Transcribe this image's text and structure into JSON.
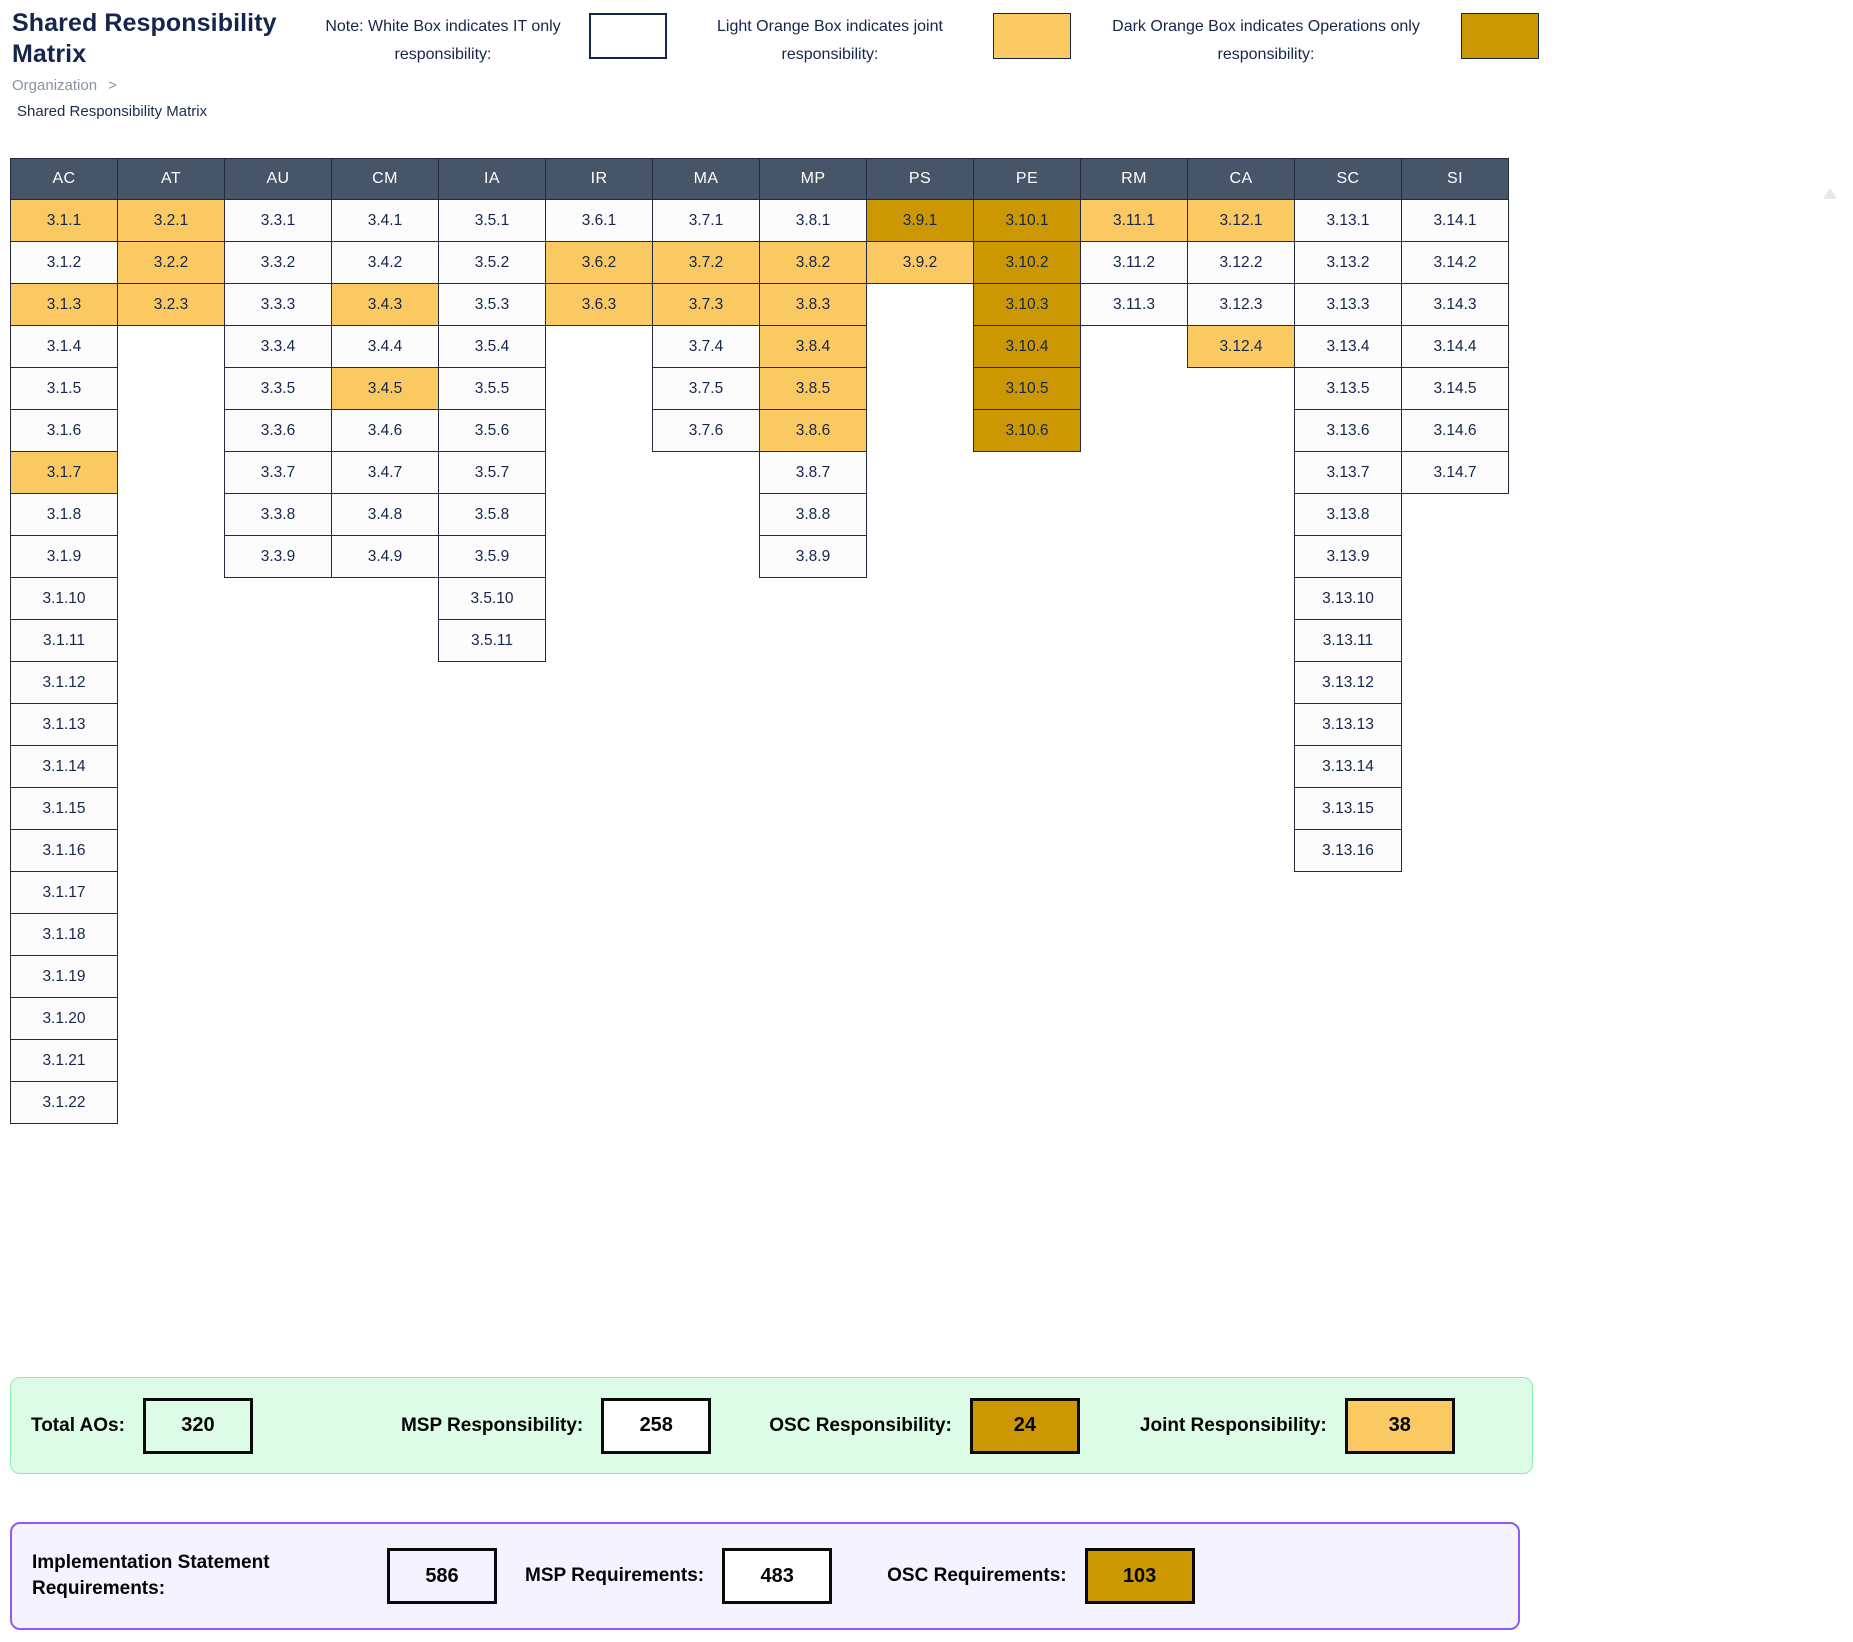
{
  "header": {
    "title": "Shared Responsibility Matrix",
    "breadcrumb": {
      "parent": "Organization",
      "separator": ">",
      "current": "Shared Responsibility Matrix"
    },
    "legend": [
      {
        "line1": "Note: White Box indicates IT only",
        "line2": "responsibility:",
        "box": "white"
      },
      {
        "line1": "Light Orange Box indicates joint",
        "line2": "responsibility:",
        "box": "light-orange"
      },
      {
        "line1": "Dark Orange Box indicates Operations only",
        "line2": "responsibility:",
        "box": "dark-orange"
      }
    ]
  },
  "colors": {
    "joint_light_orange": "#FBC962",
    "osc_dark_orange": "#CB9803",
    "msp_white": "#FFFFFF",
    "header_slate": "#475569",
    "cell_border": "#212B3B",
    "text_navy": "#15254C",
    "green_panel_bg": "#DCFCE7",
    "green_panel_border": "#86EFAC",
    "purple_panel_bg": "#F5F3FF",
    "purple_panel_border": "#8B5CF6"
  },
  "matrix": {
    "families": [
      {
        "label": "AC",
        "cells": [
          {
            "id": "3.1.1",
            "status": "joint"
          },
          {
            "id": "3.1.2",
            "status": "msp"
          },
          {
            "id": "3.1.3",
            "status": "joint"
          },
          {
            "id": "3.1.4",
            "status": "msp"
          },
          {
            "id": "3.1.5",
            "status": "msp"
          },
          {
            "id": "3.1.6",
            "status": "msp"
          },
          {
            "id": "3.1.7",
            "status": "joint"
          },
          {
            "id": "3.1.8",
            "status": "msp"
          },
          {
            "id": "3.1.9",
            "status": "msp"
          },
          {
            "id": "3.1.10",
            "status": "msp"
          },
          {
            "id": "3.1.11",
            "status": "msp"
          },
          {
            "id": "3.1.12",
            "status": "msp"
          },
          {
            "id": "3.1.13",
            "status": "msp"
          },
          {
            "id": "3.1.14",
            "status": "msp"
          },
          {
            "id": "3.1.15",
            "status": "msp"
          },
          {
            "id": "3.1.16",
            "status": "msp"
          },
          {
            "id": "3.1.17",
            "status": "msp"
          },
          {
            "id": "3.1.18",
            "status": "msp"
          },
          {
            "id": "3.1.19",
            "status": "msp"
          },
          {
            "id": "3.1.20",
            "status": "msp"
          },
          {
            "id": "3.1.21",
            "status": "msp"
          },
          {
            "id": "3.1.22",
            "status": "msp"
          }
        ]
      },
      {
        "label": "AT",
        "cells": [
          {
            "id": "3.2.1",
            "status": "joint"
          },
          {
            "id": "3.2.2",
            "status": "joint"
          },
          {
            "id": "3.2.3",
            "status": "joint"
          }
        ]
      },
      {
        "label": "AU",
        "cells": [
          {
            "id": "3.3.1",
            "status": "msp"
          },
          {
            "id": "3.3.2",
            "status": "msp"
          },
          {
            "id": "3.3.3",
            "status": "msp"
          },
          {
            "id": "3.3.4",
            "status": "msp"
          },
          {
            "id": "3.3.5",
            "status": "msp"
          },
          {
            "id": "3.3.6",
            "status": "msp"
          },
          {
            "id": "3.3.7",
            "status": "msp"
          },
          {
            "id": "3.3.8",
            "status": "msp"
          },
          {
            "id": "3.3.9",
            "status": "msp"
          }
        ]
      },
      {
        "label": "CM",
        "cells": [
          {
            "id": "3.4.1",
            "status": "msp"
          },
          {
            "id": "3.4.2",
            "status": "msp"
          },
          {
            "id": "3.4.3",
            "status": "joint"
          },
          {
            "id": "3.4.4",
            "status": "msp"
          },
          {
            "id": "3.4.5",
            "status": "joint"
          },
          {
            "id": "3.4.6",
            "status": "msp"
          },
          {
            "id": "3.4.7",
            "status": "msp"
          },
          {
            "id": "3.4.8",
            "status": "msp"
          },
          {
            "id": "3.4.9",
            "status": "msp"
          }
        ]
      },
      {
        "label": "IA",
        "cells": [
          {
            "id": "3.5.1",
            "status": "msp"
          },
          {
            "id": "3.5.2",
            "status": "msp"
          },
          {
            "id": "3.5.3",
            "status": "msp"
          },
          {
            "id": "3.5.4",
            "status": "msp"
          },
          {
            "id": "3.5.5",
            "status": "msp"
          },
          {
            "id": "3.5.6",
            "status": "msp"
          },
          {
            "id": "3.5.7",
            "status": "msp"
          },
          {
            "id": "3.5.8",
            "status": "msp"
          },
          {
            "id": "3.5.9",
            "status": "msp"
          },
          {
            "id": "3.5.10",
            "status": "msp"
          },
          {
            "id": "3.5.11",
            "status": "msp"
          }
        ]
      },
      {
        "label": "IR",
        "cells": [
          {
            "id": "3.6.1",
            "status": "msp"
          },
          {
            "id": "3.6.2",
            "status": "joint"
          },
          {
            "id": "3.6.3",
            "status": "joint"
          }
        ]
      },
      {
        "label": "MA",
        "cells": [
          {
            "id": "3.7.1",
            "status": "msp"
          },
          {
            "id": "3.7.2",
            "status": "joint"
          },
          {
            "id": "3.7.3",
            "status": "joint"
          },
          {
            "id": "3.7.4",
            "status": "msp"
          },
          {
            "id": "3.7.5",
            "status": "msp"
          },
          {
            "id": "3.7.6",
            "status": "msp"
          }
        ]
      },
      {
        "label": "MP",
        "cells": [
          {
            "id": "3.8.1",
            "status": "msp"
          },
          {
            "id": "3.8.2",
            "status": "joint"
          },
          {
            "id": "3.8.3",
            "status": "joint"
          },
          {
            "id": "3.8.4",
            "status": "joint"
          },
          {
            "id": "3.8.5",
            "status": "joint"
          },
          {
            "id": "3.8.6",
            "status": "joint"
          },
          {
            "id": "3.8.7",
            "status": "msp"
          },
          {
            "id": "3.8.8",
            "status": "msp"
          },
          {
            "id": "3.8.9",
            "status": "msp"
          }
        ]
      },
      {
        "label": "PS",
        "cells": [
          {
            "id": "3.9.1",
            "status": "osc"
          },
          {
            "id": "3.9.2",
            "status": "joint"
          }
        ]
      },
      {
        "label": "PE",
        "cells": [
          {
            "id": "3.10.1",
            "status": "osc"
          },
          {
            "id": "3.10.2",
            "status": "osc"
          },
          {
            "id": "3.10.3",
            "status": "osc"
          },
          {
            "id": "3.10.4",
            "status": "osc"
          },
          {
            "id": "3.10.5",
            "status": "osc"
          },
          {
            "id": "3.10.6",
            "status": "osc"
          }
        ]
      },
      {
        "label": "RM",
        "cells": [
          {
            "id": "3.11.1",
            "status": "joint"
          },
          {
            "id": "3.11.2",
            "status": "msp"
          },
          {
            "id": "3.11.3",
            "status": "msp"
          }
        ]
      },
      {
        "label": "CA",
        "cells": [
          {
            "id": "3.12.1",
            "status": "joint"
          },
          {
            "id": "3.12.2",
            "status": "msp"
          },
          {
            "id": "3.12.3",
            "status": "msp"
          },
          {
            "id": "3.12.4",
            "status": "joint"
          }
        ]
      },
      {
        "label": "SC",
        "cells": [
          {
            "id": "3.13.1",
            "status": "msp"
          },
          {
            "id": "3.13.2",
            "status": "msp"
          },
          {
            "id": "3.13.3",
            "status": "msp"
          },
          {
            "id": "3.13.4",
            "status": "msp"
          },
          {
            "id": "3.13.5",
            "status": "msp"
          },
          {
            "id": "3.13.6",
            "status": "msp"
          },
          {
            "id": "3.13.7",
            "status": "msp"
          },
          {
            "id": "3.13.8",
            "status": "msp"
          },
          {
            "id": "3.13.9",
            "status": "msp"
          },
          {
            "id": "3.13.10",
            "status": "msp"
          },
          {
            "id": "3.13.11",
            "status": "msp"
          },
          {
            "id": "3.13.12",
            "status": "msp"
          },
          {
            "id": "3.13.13",
            "status": "msp"
          },
          {
            "id": "3.13.14",
            "status": "msp"
          },
          {
            "id": "3.13.15",
            "status": "msp"
          },
          {
            "id": "3.13.16",
            "status": "msp"
          }
        ]
      },
      {
        "label": "SI",
        "cells": [
          {
            "id": "3.14.1",
            "status": "msp"
          },
          {
            "id": "3.14.2",
            "status": "msp"
          },
          {
            "id": "3.14.3",
            "status": "msp"
          },
          {
            "id": "3.14.4",
            "status": "msp"
          },
          {
            "id": "3.14.5",
            "status": "msp"
          },
          {
            "id": "3.14.6",
            "status": "msp"
          },
          {
            "id": "3.14.7",
            "status": "msp"
          }
        ]
      }
    ]
  },
  "summary": {
    "items": [
      {
        "label": "Total AOs:",
        "value": "320",
        "box_style": "plain"
      },
      {
        "label": "MSP Responsibility:",
        "value": "258",
        "box_style": "white"
      },
      {
        "label": "OSC Responsibility:",
        "value": "24",
        "box_style": "osc"
      },
      {
        "label": "Joint Responsibility:",
        "value": "38",
        "box_style": "joint"
      }
    ]
  },
  "requirements": {
    "items": [
      {
        "label": "Implementation Statement Requirements:",
        "value": "586",
        "box_style": "plain"
      },
      {
        "label": "MSP Requirements:",
        "value": "483",
        "box_style": "white"
      },
      {
        "label": "OSC Requirements:",
        "value": "103",
        "box_style": "osc"
      }
    ]
  }
}
